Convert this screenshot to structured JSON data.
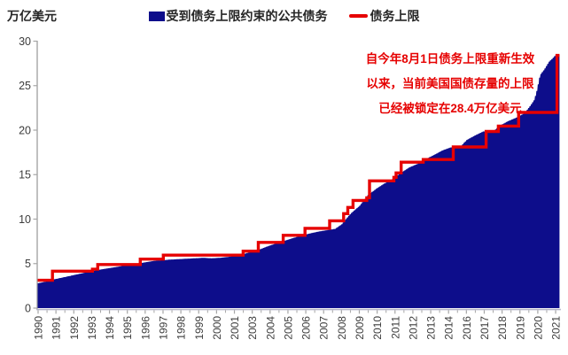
{
  "y_axis_title": "万亿美元",
  "legend": {
    "area_label": "受到债务上限约束的公共债务",
    "line_label": "债务上限"
  },
  "annotation": {
    "line1": "自今年8月1日债务上限重新生效",
    "line2": "以来，当前美国国债存量的上限",
    "line3": "已经被锁定在28.4万亿美元"
  },
  "colors": {
    "debt_area": "#0d0d8b",
    "debt_limit_line": "#e60000",
    "annotation_text": "#e60000",
    "axis": "#a6a6a6",
    "baseline": "#b3b3c8",
    "tick_label": "#3c3c3c",
    "legend_text": "#262626"
  },
  "chart_data": {
    "type": "area",
    "title": "",
    "ylabel": "万亿美元",
    "unit": "trillion USD",
    "ylim": [
      0,
      30
    ],
    "yticks": [
      0,
      5,
      10,
      15,
      20,
      25,
      30
    ],
    "xlim": [
      1990,
      2021.65
    ],
    "x_tick_labels": [
      "1990",
      "1991",
      "1992",
      "1993",
      "1994",
      "1995",
      "1996",
      "1997",
      "1998",
      "1999",
      "2000",
      "2001",
      "2003",
      "2004",
      "2005",
      "2006",
      "2007",
      "2008",
      "2009",
      "2010",
      "2011",
      "2012",
      "2013",
      "2014",
      "2016",
      "2017",
      "2018",
      "2019",
      "2020",
      "2021"
    ],
    "x_ticks_every_months": 13,
    "legend_position": "top",
    "grid": false,
    "series": [
      {
        "name": "受到债务上限约束的公共债务",
        "type": "area",
        "color": "#0d0d8b",
        "points": [
          [
            1990.0,
            2.8
          ],
          [
            1990.5,
            3.0
          ],
          [
            1991.0,
            3.25
          ],
          [
            1991.5,
            3.45
          ],
          [
            1992.0,
            3.65
          ],
          [
            1992.5,
            3.85
          ],
          [
            1993.0,
            4.05
          ],
          [
            1993.5,
            4.25
          ],
          [
            1994.0,
            4.4
          ],
          [
            1994.5,
            4.55
          ],
          [
            1995.0,
            4.7
          ],
          [
            1995.5,
            4.85
          ],
          [
            1996.0,
            5.0
          ],
          [
            1996.5,
            5.15
          ],
          [
            1997.0,
            5.3
          ],
          [
            1997.5,
            5.38
          ],
          [
            1998.0,
            5.45
          ],
          [
            1998.5,
            5.5
          ],
          [
            1999.0,
            5.55
          ],
          [
            1999.5,
            5.6
          ],
          [
            2000.0,
            5.65
          ],
          [
            2000.5,
            5.6
          ],
          [
            2001.0,
            5.65
          ],
          [
            2001.5,
            5.75
          ],
          [
            2002.0,
            5.9
          ],
          [
            2002.5,
            6.1
          ],
          [
            2003.0,
            6.35
          ],
          [
            2003.5,
            6.65
          ],
          [
            2004.0,
            7.0
          ],
          [
            2004.5,
            7.3
          ],
          [
            2005.0,
            7.6
          ],
          [
            2005.5,
            7.9
          ],
          [
            2006.0,
            8.15
          ],
          [
            2006.5,
            8.4
          ],
          [
            2007.0,
            8.6
          ],
          [
            2007.5,
            8.75
          ],
          [
            2008.0,
            8.9
          ],
          [
            2008.4,
            9.4
          ],
          [
            2008.8,
            10.3
          ],
          [
            2009.0,
            10.7
          ],
          [
            2009.5,
            11.5
          ],
          [
            2010.0,
            12.7
          ],
          [
            2010.5,
            13.4
          ],
          [
            2011.0,
            14.0
          ],
          [
            2011.5,
            14.5
          ],
          [
            2012.0,
            15.2
          ],
          [
            2012.5,
            15.8
          ],
          [
            2013.0,
            16.2
          ],
          [
            2013.4,
            16.65
          ],
          [
            2014.0,
            17.2
          ],
          [
            2014.5,
            17.7
          ],
          [
            2015.0,
            18.05
          ],
          [
            2015.6,
            18.12
          ],
          [
            2016.0,
            18.9
          ],
          [
            2016.5,
            19.4
          ],
          [
            2017.0,
            19.85
          ],
          [
            2017.6,
            19.85
          ],
          [
            2018.0,
            20.5
          ],
          [
            2018.5,
            21.0
          ],
          [
            2019.0,
            21.4
          ],
          [
            2019.5,
            21.9
          ],
          [
            2019.8,
            22.6
          ],
          [
            2020.1,
            23.4
          ],
          [
            2020.25,
            24.4
          ],
          [
            2020.45,
            26.2
          ],
          [
            2020.7,
            26.8
          ],
          [
            2021.0,
            27.7
          ],
          [
            2021.2,
            28.05
          ],
          [
            2021.4,
            28.45
          ],
          [
            2021.65,
            28.45
          ]
        ]
      },
      {
        "name": "债务上限",
        "type": "step",
        "color": "#e60000",
        "points": [
          [
            1990.0,
            3.12
          ],
          [
            1990.87,
            4.145
          ],
          [
            1993.3,
            4.37
          ],
          [
            1993.62,
            4.9
          ],
          [
            1996.2,
            5.5
          ],
          [
            1997.6,
            5.95
          ],
          [
            2002.45,
            6.4
          ],
          [
            2003.37,
            7.384
          ],
          [
            2004.88,
            8.184
          ],
          [
            2006.2,
            8.965
          ],
          [
            2007.7,
            9.815
          ],
          [
            2008.55,
            10.615
          ],
          [
            2008.8,
            11.315
          ],
          [
            2009.12,
            12.104
          ],
          [
            2009.95,
            12.394
          ],
          [
            2010.12,
            14.294
          ],
          [
            2011.6,
            14.694
          ],
          [
            2011.73,
            15.194
          ],
          [
            2012.04,
            16.394
          ],
          [
            2013.38,
            16.699
          ],
          [
            2015.2,
            18.113
          ],
          [
            2017.2,
            19.847
          ],
          [
            2017.94,
            20.456
          ],
          [
            2019.17,
            21.988
          ],
          [
            2021.5,
            28.4
          ]
        ]
      }
    ]
  }
}
